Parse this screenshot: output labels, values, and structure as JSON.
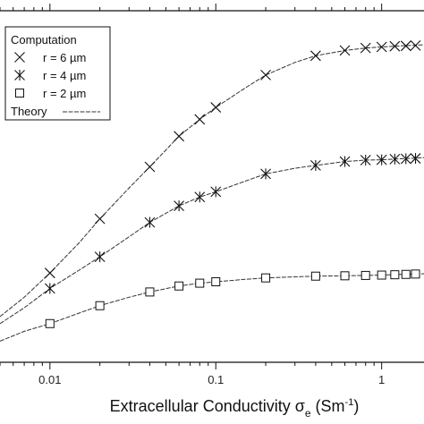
{
  "chart_data": {
    "type": "scatter",
    "title": "",
    "xscale": "log",
    "xlim": [
      0.005,
      1.8
    ],
    "ylim": [
      0,
      1
    ],
    "x_tick_labels": [
      "0.01",
      "0.1",
      "1"
    ],
    "x_tick_values": [
      0.01,
      0.1,
      1
    ],
    "xlabel": {
      "main": "Extracellular Conductivity σ",
      "sub": "e",
      "unit_open": " (Sm",
      "unit_sup": "-1",
      "unit_close": ")"
    },
    "ylabel": "",
    "grid": false,
    "legend": {
      "placement": "top-left",
      "title": "Computation",
      "entries": [
        {
          "marker": "x",
          "label": "r = 6 µm"
        },
        {
          "marker": "star",
          "label": "r = 4 µm"
        },
        {
          "marker": "square",
          "label": "r = 2 µm"
        },
        {
          "marker": "line",
          "label": "Theory"
        }
      ]
    },
    "series": [
      {
        "name": "r = 6 µm",
        "marker": "x",
        "x": [
          0.01,
          0.02,
          0.04,
          0.06,
          0.08,
          0.1,
          0.2,
          0.4,
          0.6,
          0.8,
          1.0,
          1.2,
          1.4,
          1.6
        ],
        "y": [
          0.254,
          0.408,
          0.556,
          0.643,
          0.691,
          0.725,
          0.817,
          0.872,
          0.887,
          0.894,
          0.897,
          0.899,
          0.9,
          0.901
        ]
      },
      {
        "name": "r = 4 µm",
        "marker": "star",
        "x": [
          0.01,
          0.02,
          0.04,
          0.06,
          0.08,
          0.1,
          0.2,
          0.4,
          0.6,
          0.8,
          1.0,
          1.2,
          1.4,
          1.6
        ],
        "y": [
          0.21,
          0.3,
          0.398,
          0.445,
          0.47,
          0.485,
          0.536,
          0.56,
          0.571,
          0.575,
          0.576,
          0.578,
          0.579,
          0.58
        ]
      },
      {
        "name": "r = 2 µm",
        "marker": "square",
        "x": [
          0.01,
          0.02,
          0.04,
          0.06,
          0.08,
          0.1,
          0.2,
          0.4,
          0.6,
          0.8,
          1.0,
          1.2,
          1.4,
          1.6
        ],
        "y": [
          0.11,
          0.161,
          0.2,
          0.217,
          0.225,
          0.229,
          0.24,
          0.245,
          0.246,
          0.247,
          0.248,
          0.249,
          0.25,
          0.251
        ]
      }
    ],
    "theory": [
      {
        "for": "r = 6 µm",
        "x": [
          0.005,
          0.007,
          0.01,
          0.015,
          0.02,
          0.03,
          0.04,
          0.06,
          0.08,
          0.1,
          0.15,
          0.2,
          0.3,
          0.4,
          0.6,
          0.8,
          1.0,
          1.3,
          1.8
        ],
        "y": [
          0.13,
          0.185,
          0.254,
          0.34,
          0.408,
          0.496,
          0.556,
          0.643,
          0.691,
          0.725,
          0.78,
          0.817,
          0.853,
          0.872,
          0.887,
          0.894,
          0.897,
          0.9,
          0.903
        ]
      },
      {
        "for": "r = 4 µm",
        "x": [
          0.005,
          0.007,
          0.01,
          0.015,
          0.02,
          0.03,
          0.04,
          0.06,
          0.08,
          0.1,
          0.15,
          0.2,
          0.3,
          0.4,
          0.6,
          0.8,
          1.0,
          1.3,
          1.8
        ],
        "y": [
          0.11,
          0.155,
          0.21,
          0.262,
          0.3,
          0.357,
          0.398,
          0.445,
          0.47,
          0.485,
          0.515,
          0.536,
          0.552,
          0.56,
          0.571,
          0.575,
          0.576,
          0.579,
          0.582
        ]
      },
      {
        "for": "r = 2 µm",
        "x": [
          0.005,
          0.007,
          0.01,
          0.015,
          0.02,
          0.03,
          0.04,
          0.06,
          0.08,
          0.1,
          0.15,
          0.2,
          0.3,
          0.4,
          0.6,
          0.8,
          1.0,
          1.3,
          1.8
        ],
        "y": [
          0.06,
          0.088,
          0.11,
          0.14,
          0.161,
          0.185,
          0.2,
          0.217,
          0.225,
          0.229,
          0.236,
          0.24,
          0.243,
          0.245,
          0.246,
          0.247,
          0.248,
          0.25,
          0.252
        ]
      }
    ]
  }
}
